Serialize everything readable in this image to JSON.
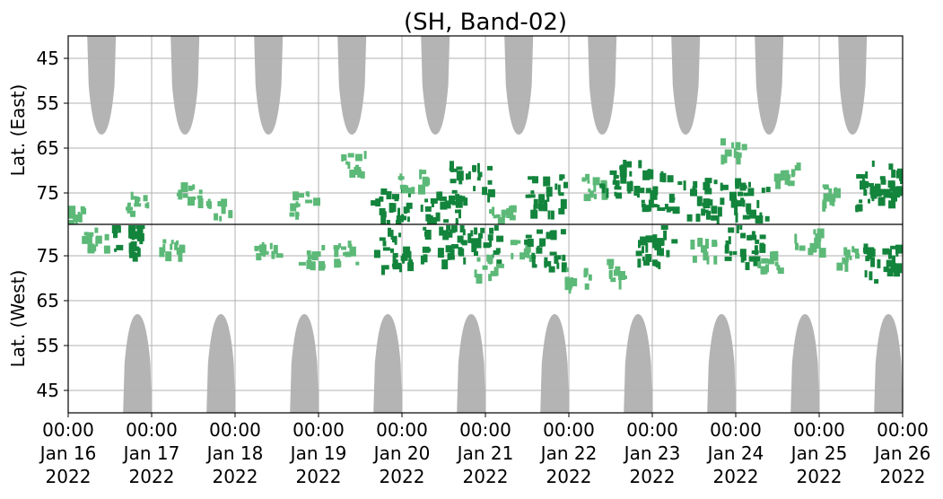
{
  "chart_data": {
    "type": "heatmap",
    "title": "(SH, Band-02)",
    "ylabel_top": "Lat. (East)",
    "ylabel_bottom": "Lat. (West)",
    "y_ticks_top": [
      "45",
      "55",
      "65",
      "75"
    ],
    "y_ticks_bottom": [
      "75",
      "65",
      "55",
      "45"
    ],
    "y_tick_values_top": [
      45,
      55,
      65,
      75
    ],
    "y_tick_values_bottom": [
      75,
      65,
      55,
      45
    ],
    "ylim_each_half": [
      40,
      82
    ],
    "xlim_days": [
      "Jan 16 2022 00:00",
      "Jan 26 2022 00:00"
    ],
    "x_ticks": [
      {
        "time": "00:00",
        "date": "Jan 16",
        "year": "2022"
      },
      {
        "time": "00:00",
        "date": "Jan 17",
        "year": "2022"
      },
      {
        "time": "00:00",
        "date": "Jan 18",
        "year": "2022"
      },
      {
        "time": "00:00",
        "date": "Jan 19",
        "year": "2022"
      },
      {
        "time": "00:00",
        "date": "Jan 20",
        "year": "2022"
      },
      {
        "time": "00:00",
        "date": "Jan 21",
        "year": "2022"
      },
      {
        "time": "00:00",
        "date": "Jan 22",
        "year": "2022"
      },
      {
        "time": "00:00",
        "date": "Jan 23",
        "year": "2022"
      },
      {
        "time": "00:00",
        "date": "Jan 24",
        "year": "2022"
      },
      {
        "time": "00:00",
        "date": "Jan 25",
        "year": "2022"
      },
      {
        "time": "00:00",
        "date": "Jan 26",
        "year": "2022"
      }
    ],
    "grid": true,
    "colors": {
      "no_coverage": "#b4b4b4",
      "detection_strong": "#13843c",
      "detection_weak": "#5cb978",
      "grid": "#b0b0b0",
      "divider": "#000000"
    },
    "no_coverage_regions_top": [
      {
        "center_day": 0.4,
        "min_lat": 62
      },
      {
        "center_day": 1.4,
        "min_lat": 62
      },
      {
        "center_day": 2.4,
        "min_lat": 62
      },
      {
        "center_day": 3.4,
        "min_lat": 62
      },
      {
        "center_day": 4.4,
        "min_lat": 62
      },
      {
        "center_day": 5.4,
        "min_lat": 62
      },
      {
        "center_day": 6.4,
        "min_lat": 62
      },
      {
        "center_day": 7.4,
        "min_lat": 62
      },
      {
        "center_day": 8.4,
        "min_lat": 62
      },
      {
        "center_day": 9.4,
        "min_lat": 62
      }
    ],
    "no_coverage_regions_bottom": [
      {
        "center_day": 0.83,
        "min_lat": 62
      },
      {
        "center_day": 1.83,
        "min_lat": 62
      },
      {
        "center_day": 2.83,
        "min_lat": 62
      },
      {
        "center_day": 3.83,
        "min_lat": 62
      },
      {
        "center_day": 4.83,
        "min_lat": 62
      },
      {
        "center_day": 5.83,
        "min_lat": 62
      },
      {
        "center_day": 6.83,
        "min_lat": 62
      },
      {
        "center_day": 7.83,
        "min_lat": 62
      },
      {
        "center_day": 8.83,
        "min_lat": 62
      },
      {
        "center_day": 9.83,
        "min_lat": 62
      }
    ],
    "detections": [
      {
        "half": "top",
        "day": 0.1,
        "lat": 80,
        "strength": "weak"
      },
      {
        "half": "bottom",
        "day": 0.3,
        "lat": 79,
        "strength": "weak"
      },
      {
        "half": "bottom",
        "day": 0.75,
        "lat": 80,
        "strength": "strong"
      },
      {
        "half": "top",
        "day": 0.8,
        "lat": 77,
        "strength": "weak"
      },
      {
        "half": "bottom",
        "day": 1.2,
        "lat": 78,
        "strength": "weak"
      },
      {
        "half": "top",
        "day": 1.45,
        "lat": 75,
        "strength": "weak"
      },
      {
        "half": "top",
        "day": 1.8,
        "lat": 78,
        "strength": "weak"
      },
      {
        "half": "bottom",
        "day": 2.35,
        "lat": 77,
        "strength": "weak"
      },
      {
        "half": "top",
        "day": 2.8,
        "lat": 77,
        "strength": "weak"
      },
      {
        "half": "bottom",
        "day": 2.9,
        "lat": 75,
        "strength": "weak"
      },
      {
        "half": "top",
        "day": 3.4,
        "lat": 68,
        "strength": "weak"
      },
      {
        "half": "bottom",
        "day": 3.3,
        "lat": 76,
        "strength": "weak"
      },
      {
        "half": "top",
        "day": 3.85,
        "lat": 78,
        "strength": "strong"
      },
      {
        "half": "bottom",
        "day": 3.9,
        "lat": 77,
        "strength": "strong"
      },
      {
        "half": "top",
        "day": 4.1,
        "lat": 72,
        "strength": "weak"
      },
      {
        "half": "top",
        "day": 4.45,
        "lat": 79,
        "strength": "strong"
      },
      {
        "half": "bottom",
        "day": 4.45,
        "lat": 78,
        "strength": "strong"
      },
      {
        "half": "top",
        "day": 4.8,
        "lat": 72,
        "strength": "strong"
      },
      {
        "half": "bottom",
        "day": 4.9,
        "lat": 78,
        "strength": "strong"
      },
      {
        "half": "bottom",
        "day": 5.0,
        "lat": 73,
        "strength": "weak"
      },
      {
        "half": "top",
        "day": 5.15,
        "lat": 80,
        "strength": "weak"
      },
      {
        "half": "bottom",
        "day": 5.4,
        "lat": 77,
        "strength": "weak"
      },
      {
        "half": "top",
        "day": 5.7,
        "lat": 75,
        "strength": "strong"
      },
      {
        "half": "bottom",
        "day": 5.7,
        "lat": 77,
        "strength": "strong"
      },
      {
        "half": "top",
        "day": 6.3,
        "lat": 73,
        "strength": "weak"
      },
      {
        "half": "bottom",
        "day": 6.1,
        "lat": 70,
        "strength": "weak"
      },
      {
        "half": "top",
        "day": 6.6,
        "lat": 72,
        "strength": "strong"
      },
      {
        "half": "bottom",
        "day": 6.5,
        "lat": 72,
        "strength": "weak"
      },
      {
        "half": "top",
        "day": 7.1,
        "lat": 74,
        "strength": "strong"
      },
      {
        "half": "bottom",
        "day": 7.0,
        "lat": 78,
        "strength": "strong"
      },
      {
        "half": "top",
        "day": 7.6,
        "lat": 76,
        "strength": "strong"
      },
      {
        "half": "bottom",
        "day": 7.6,
        "lat": 77,
        "strength": "weak"
      },
      {
        "half": "top",
        "day": 7.95,
        "lat": 65,
        "strength": "weak"
      },
      {
        "half": "top",
        "day": 8.15,
        "lat": 76,
        "strength": "strong"
      },
      {
        "half": "bottom",
        "day": 8.1,
        "lat": 78,
        "strength": "strong"
      },
      {
        "half": "bottom",
        "day": 8.4,
        "lat": 74,
        "strength": "weak"
      },
      {
        "half": "top",
        "day": 8.6,
        "lat": 70,
        "strength": "weak"
      },
      {
        "half": "bottom",
        "day": 8.85,
        "lat": 79,
        "strength": "weak"
      },
      {
        "half": "top",
        "day": 9.1,
        "lat": 75,
        "strength": "weak"
      },
      {
        "half": "bottom",
        "day": 9.3,
        "lat": 75,
        "strength": "weak"
      },
      {
        "half": "top",
        "day": 9.65,
        "lat": 74,
        "strength": "strong"
      },
      {
        "half": "top",
        "day": 9.85,
        "lat": 72,
        "strength": "strong"
      },
      {
        "half": "bottom",
        "day": 9.75,
        "lat": 74,
        "strength": "strong"
      }
    ]
  }
}
